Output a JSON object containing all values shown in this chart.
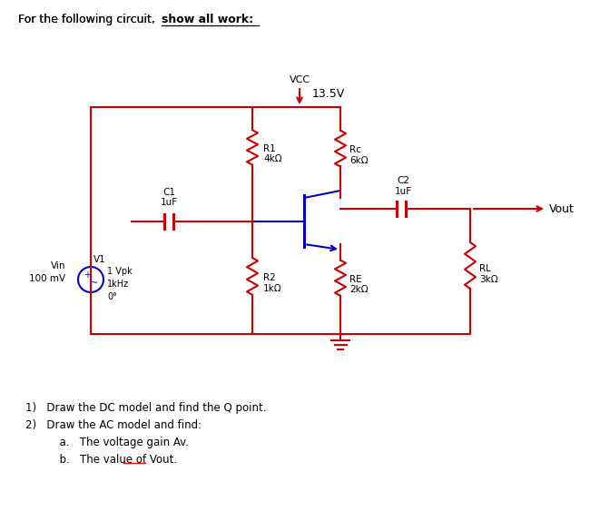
{
  "bg_color": "#ffffff",
  "red": "#cc0000",
  "blue": "#0000cc",
  "black": "#000000",
  "title_normal": "For the following circuit,  ",
  "title_bold": "show all work:",
  "questions": [
    "1)   Draw the DC model and find the Q point.",
    "2)   Draw the AC model and find:",
    "          a.   The voltage gain Av.",
    "          b.   The value of Vout."
  ],
  "vcc_label": "VCC",
  "vcc_value": "13.5V",
  "R1_label": "R1\n4kΩ",
  "R2_label": "R2\n1kΩ",
  "RC_label": "Rc\n6kΩ",
  "RE_label": "RE\n2kΩ",
  "RL_label": "RL\n3kΩ",
  "C1_label": "C1\n1uF",
  "C2_label": "C2\n1uF",
  "Vout_label": "Vout",
  "Vin_label": "Vin\n100 mV",
  "V1_label": "V1",
  "V1_detail": "1 Vpk\n1kHz\n0°"
}
